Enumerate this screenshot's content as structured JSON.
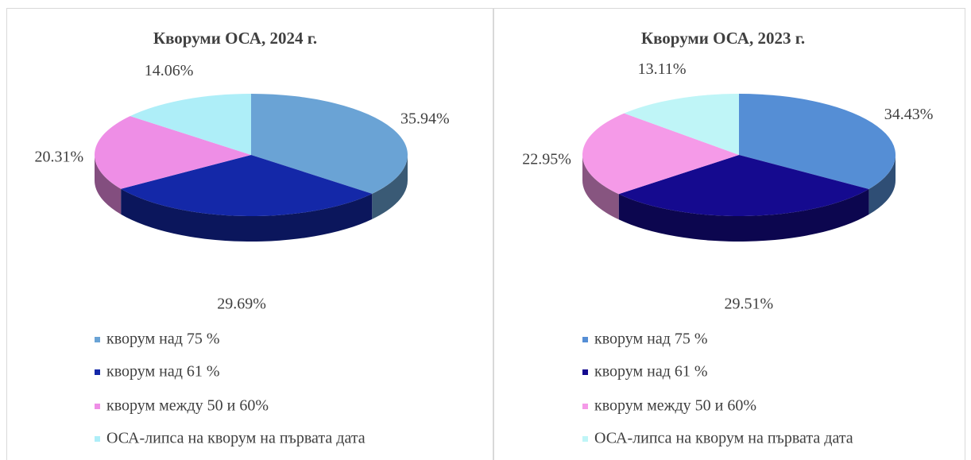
{
  "chart_data": [
    {
      "type": "pie",
      "title": "Кворуми ОСА, 2024 г.",
      "categories": [
        "кворум над 75 %",
        "кворум над 61 %",
        "кворум между 50 и 60%",
        "ОСА-липса на кворум на първата дата"
      ],
      "values": [
        35.94,
        29.69,
        20.31,
        14.06
      ],
      "value_labels": [
        "35.94%",
        "29.69%",
        "20.31%",
        "14.06%"
      ],
      "colors": [
        "#6aa3d5",
        "#1428a8",
        "#ee8ee6",
        "#aeeef8"
      ]
    },
    {
      "type": "pie",
      "title": "Кворуми ОСА, 2023 г.",
      "categories": [
        "кворум над 75 %",
        "кворум над 61 %",
        "кворум между 50 и 60%",
        "ОСА-липса на кворум на първата дата"
      ],
      "values": [
        34.43,
        29.51,
        22.95,
        13.11
      ],
      "value_labels": [
        "34.43%",
        "29.51%",
        "22.95%",
        "13.11%"
      ],
      "colors": [
        "#558ed5",
        "#150a8f",
        "#f59ae8",
        "#bff5f7"
      ]
    }
  ]
}
